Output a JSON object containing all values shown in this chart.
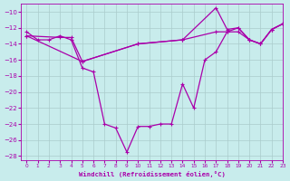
{
  "color": "#aa00aa",
  "bg_color": "#c8ecec",
  "grid_color": "#aacccc",
  "xlabel": "Windchill (Refroidissement éolien,°C)",
  "xlim": [
    -0.5,
    23
  ],
  "ylim": [
    -28.5,
    -9
  ],
  "yticks": [
    -28,
    -26,
    -24,
    -22,
    -20,
    -18,
    -16,
    -14,
    -12,
    -10
  ],
  "xticks": [
    0,
    1,
    2,
    3,
    4,
    5,
    6,
    7,
    8,
    9,
    10,
    11,
    12,
    13,
    14,
    15,
    16,
    17,
    18,
    19,
    20,
    21,
    22,
    23
  ],
  "curve1_x": [
    0,
    1,
    2,
    3,
    4,
    5,
    6,
    7,
    8,
    9,
    10,
    11,
    12,
    13,
    14,
    15,
    16,
    17,
    18,
    19,
    20,
    21,
    22,
    23
  ],
  "curve1_y": [
    -12.5,
    -13.5,
    -13.5,
    -13.0,
    -13.5,
    -17.0,
    -17.5,
    -24.0,
    -24.5,
    -27.5,
    -24.3,
    -24.3,
    -24.0,
    -24.0,
    -19.0,
    -22.0,
    -16.0,
    -15.0,
    -12.5,
    -12.0,
    -13.5,
    -14.0,
    -12.2,
    -11.5
  ],
  "curve2_x": [
    0,
    3,
    4,
    5,
    10,
    14,
    17,
    18,
    19,
    20,
    21,
    22,
    23
  ],
  "curve2_y": [
    -13.0,
    -13.2,
    -13.2,
    -16.2,
    -14.0,
    -13.5,
    -12.5,
    -12.5,
    -12.5,
    -13.5,
    -14.0,
    -12.2,
    -11.5
  ],
  "curve3_x": [
    0,
    5,
    10,
    14,
    17,
    18,
    19,
    20,
    21,
    22,
    23
  ],
  "curve3_y": [
    -13.0,
    -16.2,
    -14.0,
    -13.5,
    -9.5,
    -12.2,
    -12.0,
    -13.5,
    -14.0,
    -12.2,
    -11.5
  ]
}
